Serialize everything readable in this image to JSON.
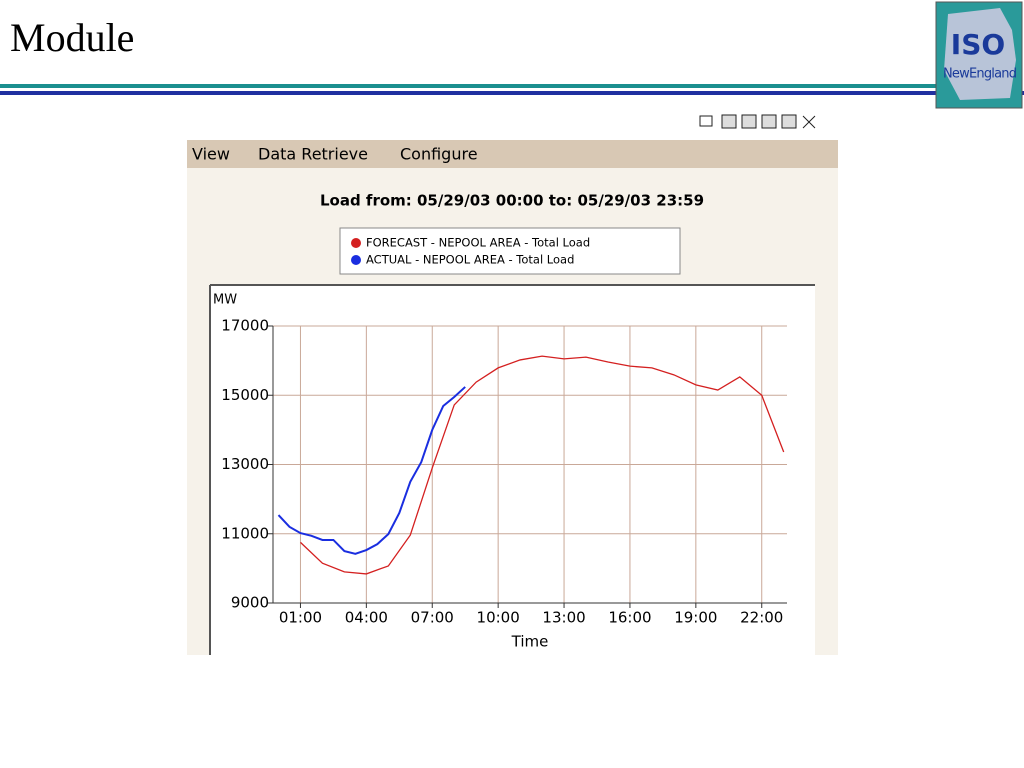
{
  "slide": {
    "title": "Module"
  },
  "logo": {
    "line1": "ISO",
    "line2": "NewEngland"
  },
  "menu": [
    "View",
    "Data Retrieve",
    "Configure"
  ],
  "chart_data": {
    "type": "line",
    "title": "Load from: 05/29/03 00:00 to: 05/29/03 23:59",
    "y_label": "MW",
    "x_label": "Time",
    "xlim": [
      -0.25,
      23.15
    ],
    "xticks": [
      {
        "value": 1,
        "label": "01:00"
      },
      {
        "value": 4,
        "label": "04:00"
      },
      {
        "value": 7,
        "label": "07:00"
      },
      {
        "value": 10,
        "label": "10:00"
      },
      {
        "value": 13,
        "label": "13:00"
      },
      {
        "value": 16,
        "label": "16:00"
      },
      {
        "value": 19,
        "label": "19:00"
      },
      {
        "value": 22,
        "label": "22:00"
      }
    ],
    "ylim": [
      9000,
      17000
    ],
    "yticks": [
      9000,
      11000,
      13000,
      15000,
      17000
    ],
    "grid": true,
    "series": [
      {
        "name": "FORECAST - NEPOOL AREA - Total Load",
        "color": "#d42020",
        "x": [
          1,
          2,
          3,
          4,
          5,
          6,
          7,
          8,
          9,
          10,
          11,
          12,
          13,
          14,
          15,
          16,
          17,
          18,
          19,
          20,
          21,
          22,
          23
        ],
        "values": [
          10750,
          10150,
          9900,
          9840,
          10070,
          10960,
          12900,
          14720,
          15380,
          15790,
          16020,
          16130,
          16050,
          16100,
          15960,
          15840,
          15790,
          15590,
          15300,
          15150,
          15530,
          15000,
          13360
        ]
      },
      {
        "name": "ACTUAL - NEPOOL AREA - Total Load",
        "color": "#1a2ee0",
        "x": [
          0,
          0.5,
          1,
          1.5,
          2,
          2.5,
          3,
          3.5,
          4,
          4.5,
          5,
          5.5,
          6,
          6.5,
          7,
          7.5,
          8,
          8.5
        ],
        "values": [
          11540,
          11200,
          11020,
          10940,
          10820,
          10820,
          10500,
          10420,
          10530,
          10700,
          10990,
          11600,
          12500,
          13070,
          14000,
          14690,
          14950,
          15240
        ]
      }
    ]
  }
}
